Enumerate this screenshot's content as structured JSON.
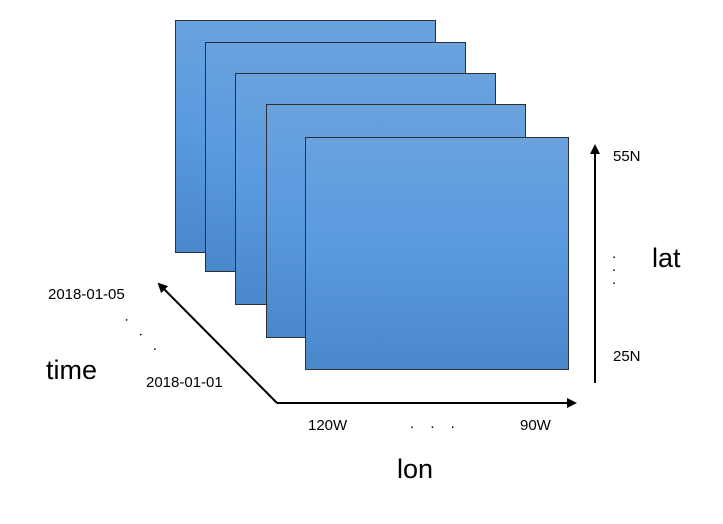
{
  "slices": {
    "count": 5,
    "fill_top": "#6aa2dd",
    "fill_bottom": "#4a88cc",
    "border": "#2c2f33"
  },
  "axes": {
    "lat": {
      "label": "lat",
      "top": "55N",
      "bottom": "25N",
      "ellipsis": ". . ."
    },
    "lon": {
      "label": "lon",
      "left": "120W",
      "right": "90W",
      "ellipsis": ". . ."
    },
    "time": {
      "label": "time",
      "start": "2018-01-01",
      "end": "2018-01-05",
      "ellipsis": ". . ."
    }
  }
}
